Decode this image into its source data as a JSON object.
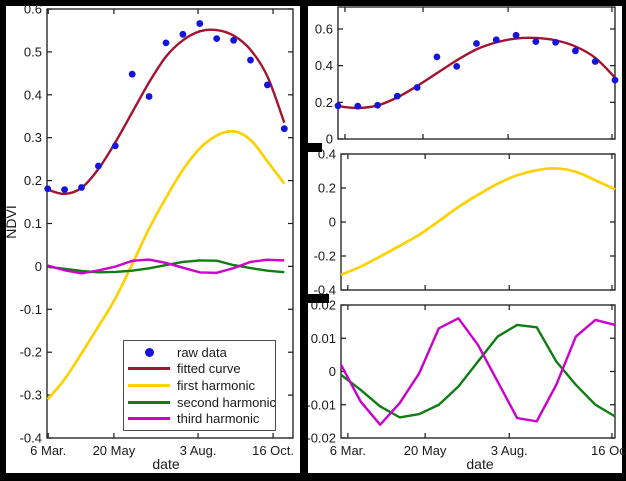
{
  "colors": {
    "background": "#000000",
    "figure_background": "#ffffff",
    "axis": "#1a1a1a",
    "raw_data": "#1414dd",
    "fitted_curve": "#a2142f",
    "first_harmonic": "#ffd100",
    "second_harmonic": "#0f7d12",
    "third_harmonic": "#cc00cc",
    "legend_border": "#4d4d4d"
  },
  "chart_data": [
    {
      "id": "ndvi-decomposition-main",
      "type": "line",
      "title": "",
      "xlabel": "date",
      "ylabel": "NDVI",
      "x_days": [
        0,
        16,
        32,
        48,
        64,
        80,
        96,
        112,
        128,
        144,
        160,
        176,
        192,
        208,
        224
      ],
      "xtick_labels": [
        "6 Mar.",
        "20 May",
        "3 Aug.",
        "16 Oct."
      ],
      "ylim": [
        -0.4,
        0.6
      ],
      "ytick_values": [
        0.6,
        0.5,
        0.4,
        0.3,
        0.2,
        0.1,
        0,
        -0.1,
        -0.2,
        -0.3,
        -0.4
      ],
      "ytick_labels": [
        "0.6",
        "0.5",
        "0.4",
        "0.3",
        "0.2",
        "0.1",
        "0",
        "-0.1",
        "-0.2",
        "-0.3",
        "-0.4"
      ],
      "grid": false,
      "legend_position": "inside-lower-right",
      "series": [
        {
          "name": "raw data",
          "type": "scatter",
          "marker": "circle",
          "color": "#1414dd",
          "values": [
            0.181,
            0.179,
            0.184,
            0.234,
            0.281,
            0.448,
            0.396,
            0.521,
            0.541,
            0.566,
            0.531,
            0.527,
            0.481,
            0.423,
            0.321
          ]
        },
        {
          "name": "fitted curve",
          "type": "line",
          "smooth": true,
          "color": "#a2142f",
          "values": [
            0.179,
            0.169,
            0.183,
            0.227,
            0.289,
            0.359,
            0.429,
            0.489,
            0.527,
            0.548,
            0.551,
            0.538,
            0.505,
            0.443,
            0.335
          ]
        },
        {
          "name": "first harmonic",
          "type": "line",
          "smooth": true,
          "color": "#ffd100",
          "values": [
            -0.31,
            -0.263,
            -0.203,
            -0.14,
            -0.075,
            0.005,
            0.088,
            0.16,
            0.225,
            0.275,
            0.305,
            0.315,
            0.295,
            0.245,
            0.193
          ]
        },
        {
          "name": "second harmonic",
          "type": "line",
          "smooth": false,
          "color": "#0f7d12",
          "values": [
            -0.001,
            -0.0055,
            -0.0105,
            -0.0138,
            -0.0128,
            -0.01,
            -0.0045,
            0.003,
            0.0105,
            0.014,
            0.0133,
            0.003,
            -0.004,
            -0.01,
            -0.0135
          ]
        },
        {
          "name": "third harmonic",
          "type": "line",
          "smooth": false,
          "color": "#cc00cc",
          "values": [
            0.002,
            -0.009,
            -0.016,
            -0.0095,
            -0.0005,
            0.013,
            0.016,
            0.008,
            -0.003,
            -0.014,
            -0.015,
            -0.004,
            0.0105,
            0.0155,
            0.014
          ]
        }
      ]
    },
    {
      "id": "fit-detail",
      "type": "line",
      "panel": "right-top",
      "ylim": [
        0,
        0.72
      ],
      "ytick_values": [
        0.6,
        0.4,
        0.2,
        0
      ],
      "ytick_labels": [
        "0.6",
        "0.4",
        "0.2",
        "0"
      ],
      "xtick_labels": [],
      "series_ref": [
        "fitted curve",
        "raw data"
      ]
    },
    {
      "id": "first-harmonic-detail",
      "type": "line",
      "panel": "right-middle",
      "ylim": [
        -0.4,
        0.4
      ],
      "ytick_values": [
        0.4,
        0.2,
        0,
        -0.2,
        -0.4
      ],
      "ytick_labels": [
        "0.4",
        "0.2",
        "0",
        "-0.2",
        "-0.4"
      ],
      "xtick_labels": [],
      "series_ref": [
        "first harmonic"
      ]
    },
    {
      "id": "second-third-harmonic-detail",
      "type": "line",
      "panel": "right-bottom",
      "xlabel": "date",
      "ylim": [
        -0.02,
        0.02
      ],
      "ytick_values": [
        0.02,
        0.01,
        0,
        -0.01,
        -0.02
      ],
      "ytick_labels": [
        "0.02",
        "0.01",
        "0",
        "-0.01",
        "-0.02"
      ],
      "xtick_labels": [
        "6 Mar.",
        "20 May",
        "3 Aug.",
        "16 Oct."
      ],
      "series_ref": [
        "second harmonic",
        "third harmonic"
      ]
    }
  ]
}
